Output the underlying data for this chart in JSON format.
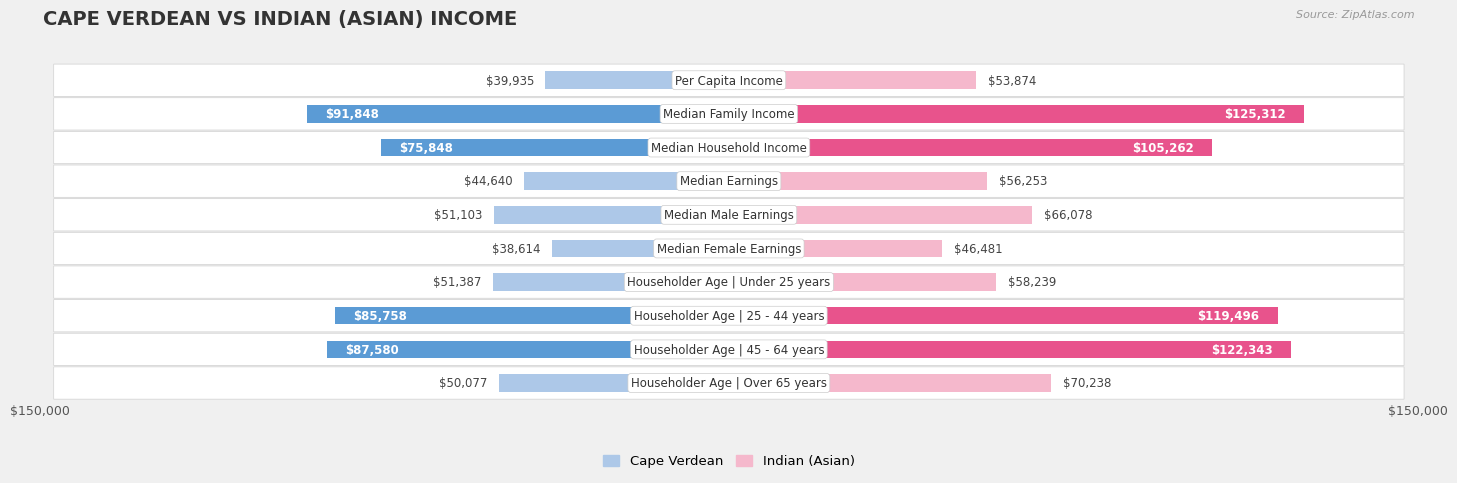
{
  "title": "CAPE VERDEAN VS INDIAN (ASIAN) INCOME",
  "source": "Source: ZipAtlas.com",
  "categories": [
    "Per Capita Income",
    "Median Family Income",
    "Median Household Income",
    "Median Earnings",
    "Median Male Earnings",
    "Median Female Earnings",
    "Householder Age | Under 25 years",
    "Householder Age | 25 - 44 years",
    "Householder Age | 45 - 64 years",
    "Householder Age | Over 65 years"
  ],
  "cape_verdean": [
    39935,
    91848,
    75848,
    44640,
    51103,
    38614,
    51387,
    85758,
    87580,
    50077
  ],
  "indian": [
    53874,
    125312,
    105262,
    56253,
    66078,
    46481,
    58239,
    119496,
    122343,
    70238
  ],
  "cape_verdean_labels": [
    "$39,935",
    "$91,848",
    "$75,848",
    "$44,640",
    "$51,103",
    "$38,614",
    "$51,387",
    "$85,758",
    "$87,580",
    "$50,077"
  ],
  "indian_labels": [
    "$53,874",
    "$125,312",
    "$105,262",
    "$56,253",
    "$66,078",
    "$46,481",
    "$58,239",
    "$119,496",
    "$122,343",
    "$70,238"
  ],
  "cape_verdean_color_normal": "#adc8e8",
  "cape_verdean_color_highlight": "#5b9bd5",
  "indian_color_normal": "#f5b8cc",
  "indian_color_highlight": "#e8538c",
  "highlight_cv": [
    1,
    2,
    7,
    8
  ],
  "highlight_ind": [
    1,
    2,
    7,
    8
  ],
  "max_val": 150000,
  "bg_color": "#f0f0f0",
  "row_bg_white": "#ffffff",
  "label_fontsize": 8.5,
  "title_fontsize": 14,
  "source_fontsize": 8,
  "axis_label": "$150,000",
  "legend_cv": "Cape Verdean",
  "legend_ind": "Indian (Asian)"
}
